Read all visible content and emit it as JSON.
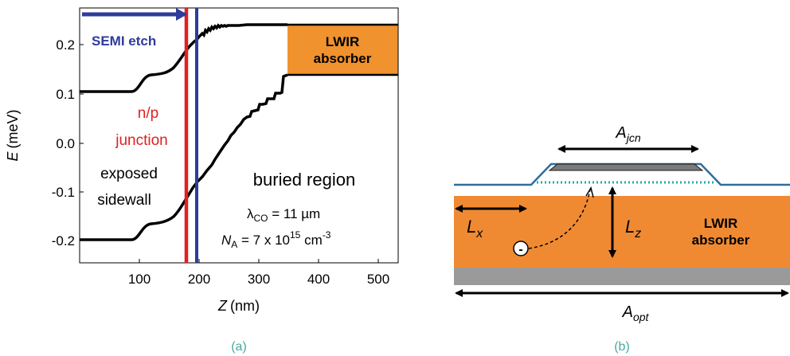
{
  "panel_a": {
    "caption": "(a)",
    "y_axis": {
      "label_var": "E",
      "label_unit": "(meV)",
      "ticks": [
        "0.2",
        "0.1",
        "0.0",
        "-0.1",
        "-0.2"
      ]
    },
    "x_axis": {
      "label_var": "Z",
      "label_unit": "(nm)",
      "ticks": [
        "100",
        "200",
        "300",
        "400",
        "500"
      ]
    },
    "annotations": {
      "semi_etch": "SEMI etch",
      "lwir_line1": "LWIR",
      "lwir_line2": "absorber",
      "np_line1": "n/p",
      "np_line2": "junction",
      "exposed_line1": "exposed",
      "exposed_line2": "sidewall",
      "buried": "buried region",
      "lambda_sym": "λ",
      "lambda_sub": "CO",
      "lambda_val": " = 11 µm",
      "na_sym": "N",
      "na_sub": "A",
      "na_val": " = 7 x 10",
      "na_exp": "15",
      "na_unit": " cm",
      "na_unit_exp": "-3"
    },
    "colors": {
      "semi_etch": "#2e3b9c",
      "junction": "#e02020",
      "absorber": "#f0922e",
      "curve": "#000000"
    }
  },
  "panel_b": {
    "caption": "(b)",
    "labels": {
      "ajcn_sym": "A",
      "ajcn_sub": "jcn",
      "lx_sym": "L",
      "lx_sub": "x",
      "lz_sym": "L",
      "lz_sub": "z",
      "aopt_sym": "A",
      "aopt_sub": "opt",
      "lwir_line1": "LWIR",
      "lwir_line2": "absorber",
      "electron": "-"
    },
    "colors": {
      "absorber": "#f08a32",
      "substrate": "#9a9a9a",
      "surface_line": "#2e6e9e",
      "junction_dots": "#22aaaa",
      "contact": "#7a7a7a"
    }
  }
}
